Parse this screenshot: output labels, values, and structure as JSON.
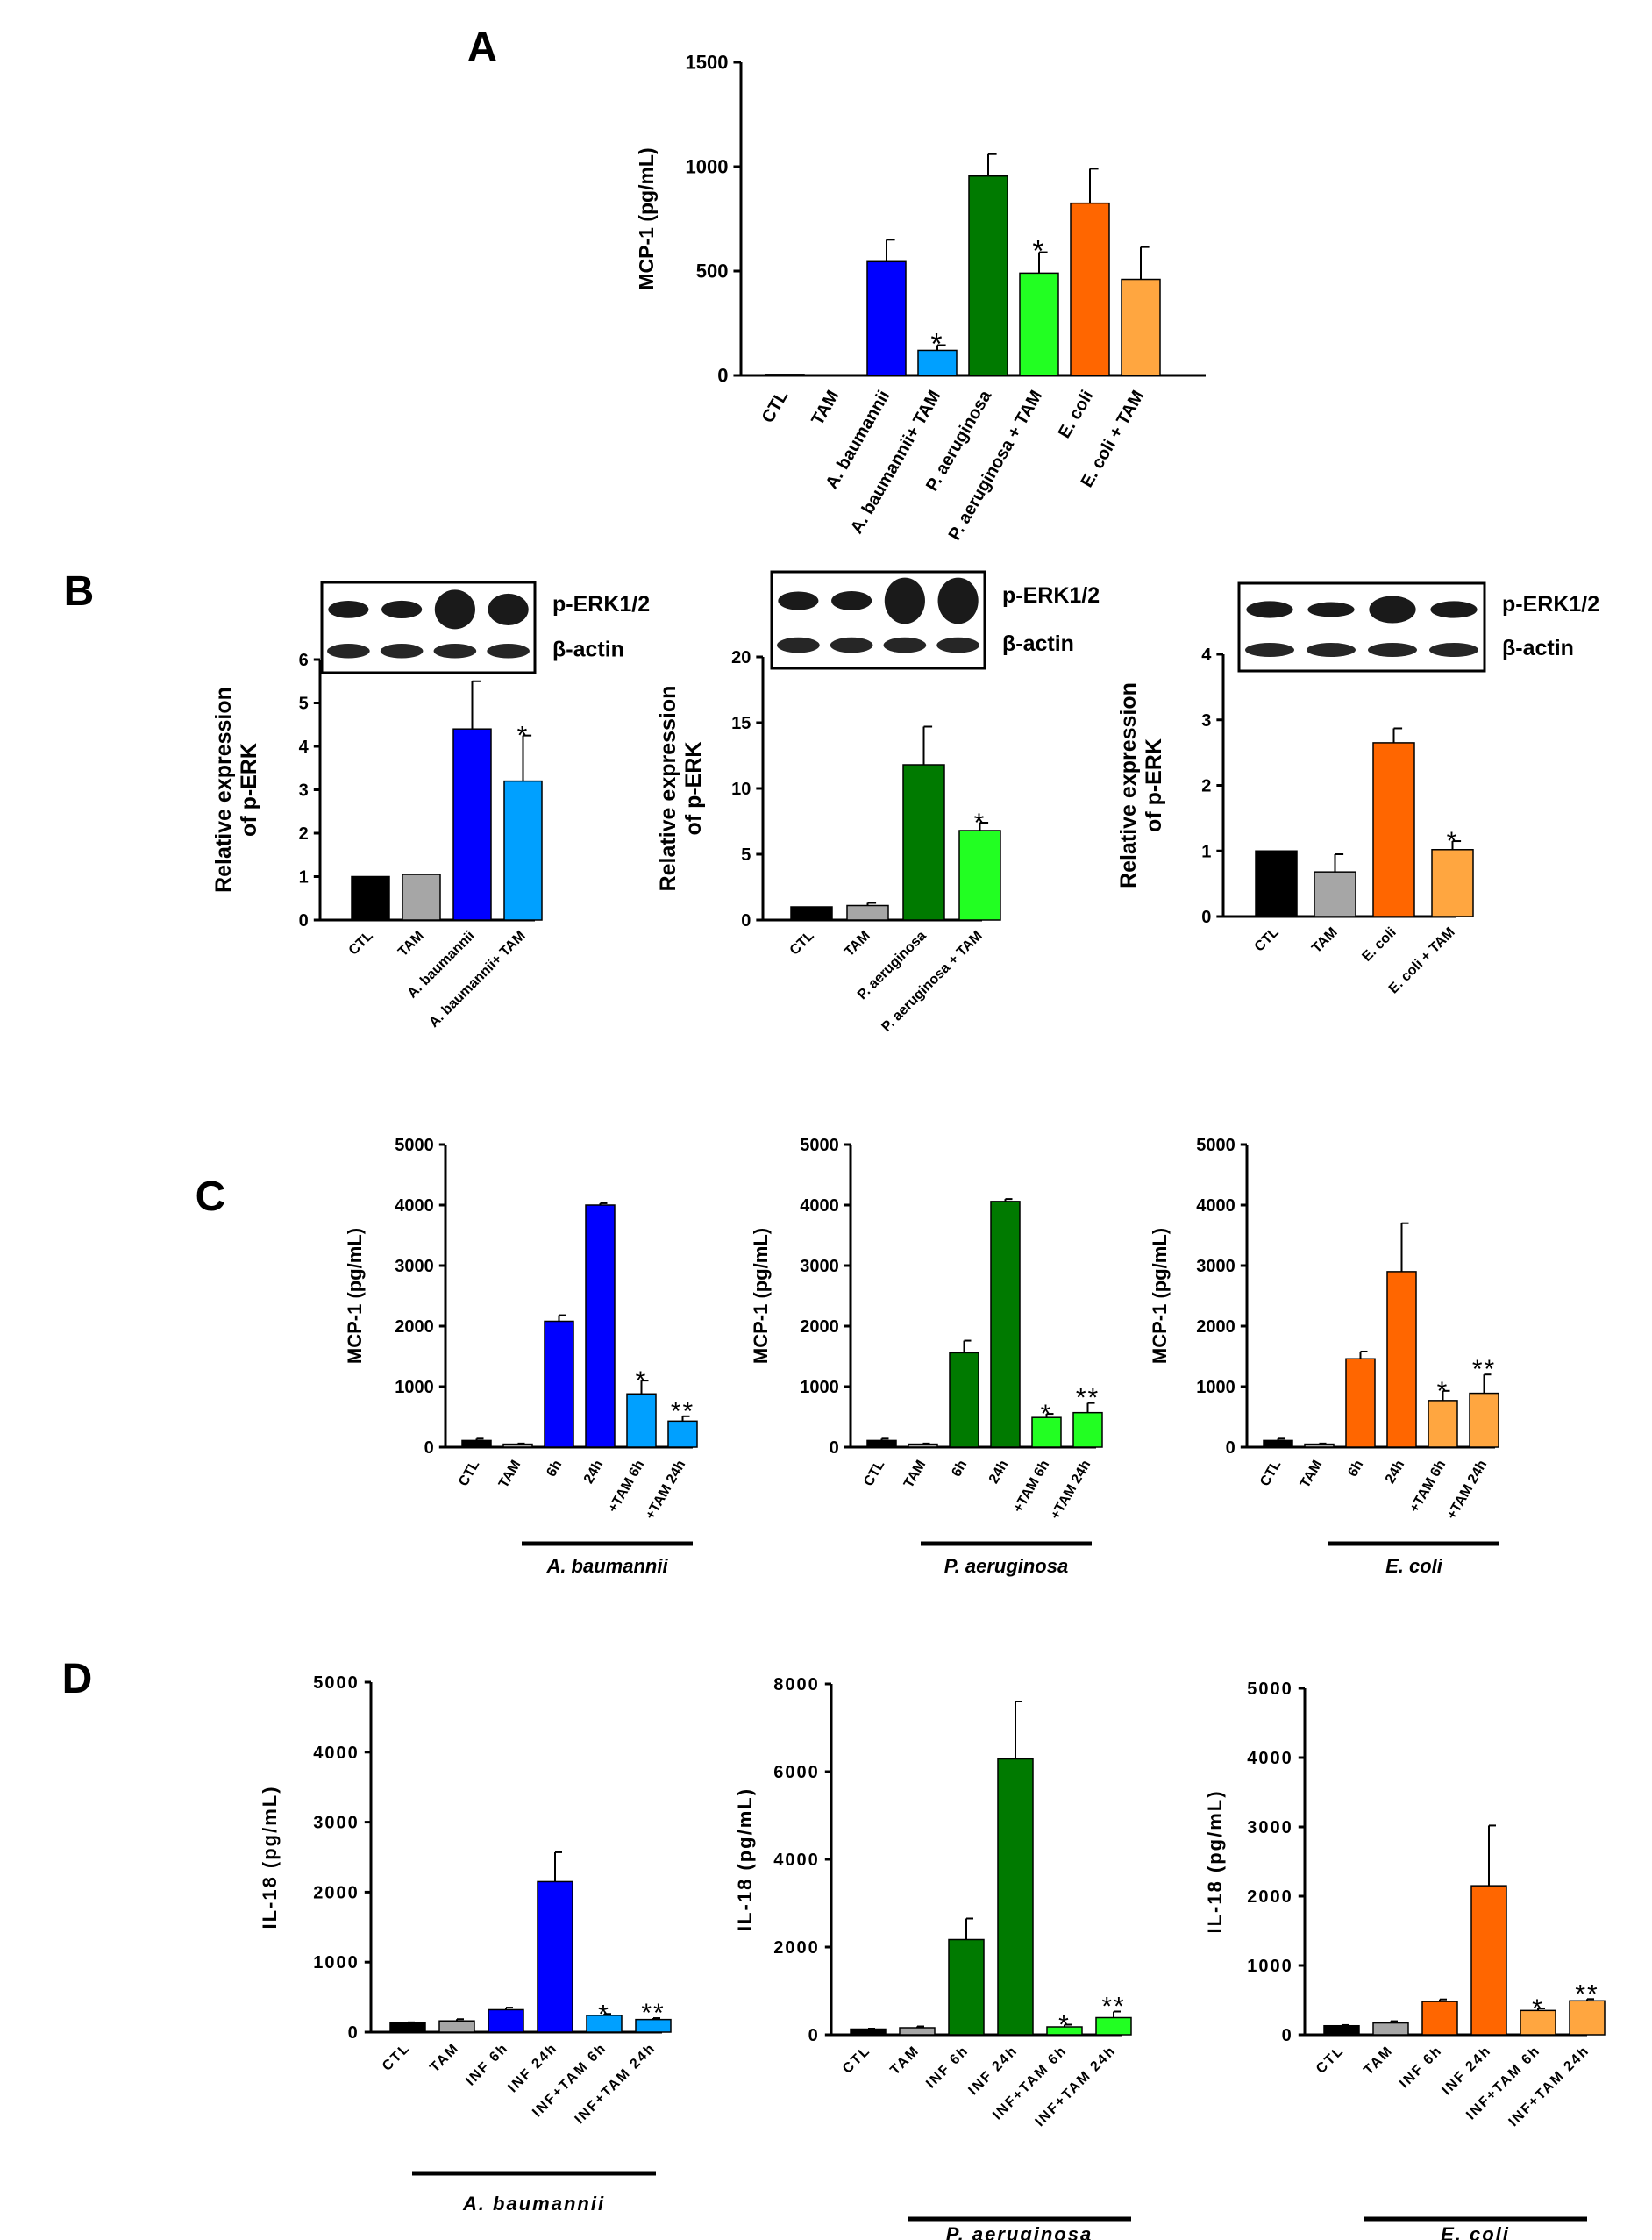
{
  "panel_letters": [
    "A",
    "B",
    "C",
    "D"
  ],
  "colors": {
    "ctl": "#000000",
    "tam": "#a6a6a6",
    "ab": "#0000ff",
    "ab_tam": "#00a0ff",
    "pa": "#007a00",
    "pa_tam": "#22ff22",
    "ec": "#ff6600",
    "ec_tam": "#ffa640"
  },
  "western_blot": {
    "target_label": "p-ERK1/2",
    "loading_label": "β-actin"
  },
  "chart_data": [
    {
      "id": "A",
      "type": "bar",
      "title": "",
      "xlabel": "",
      "ylabel": "MCP-1 (pg/mL)",
      "ylim": [
        0,
        1500
      ],
      "yticks": [
        0,
        500,
        1000,
        1500
      ],
      "categories": [
        "CTL",
        "TAM",
        "A. baumannii",
        "A. baumannii+ TAM",
        "P. aeruginosa",
        "P. aeruginosa + TAM",
        "E. coli",
        "E. coli + TAM"
      ],
      "values": [
        5,
        0,
        545,
        120,
        955,
        490,
        825,
        460
      ],
      "errors": [
        0,
        0,
        105,
        25,
        105,
        100,
        165,
        155
      ],
      "annotations": [
        "",
        "",
        "",
        "*",
        "",
        "*",
        "",
        ""
      ],
      "bar_colors": [
        "#000000",
        "#a6a6a6",
        "#0000ff",
        "#00a0ff",
        "#007a00",
        "#22ff22",
        "#ff6600",
        "#ffa640"
      ]
    },
    {
      "id": "B1",
      "type": "bar",
      "title": "",
      "ylabel": "Relative expression of p-ERK",
      "ylabel_lines": [
        "Relative expression",
        "of p-ERK"
      ],
      "ylim": [
        0,
        6
      ],
      "yticks": [
        0,
        1,
        2,
        3,
        4,
        5,
        6
      ],
      "categories": [
        "CTL",
        "TAM",
        "A. baumannii",
        "A. baumannii+ TAM"
      ],
      "values": [
        1,
        1.05,
        4.4,
        3.2
      ],
      "errors": [
        0,
        0,
        1.1,
        1.05
      ],
      "annotations": [
        "",
        "",
        "",
        "*"
      ],
      "bar_colors": [
        "#000000",
        "#a6a6a6",
        "#0000ff",
        "#00a0ff"
      ]
    },
    {
      "id": "B2",
      "type": "bar",
      "title": "",
      "ylabel": "Relative expression of p-ERK",
      "ylabel_lines": [
        "Relative expression",
        "of p-ERK"
      ],
      "ylim": [
        0,
        20
      ],
      "yticks": [
        0,
        5,
        10,
        15,
        20
      ],
      "categories": [
        "CTL",
        "TAM",
        "P. aeruginosa",
        "P. aeruginosa + TAM"
      ],
      "values": [
        1,
        1.1,
        11.8,
        6.8
      ],
      "errors": [
        0,
        0.2,
        2.9,
        0.6
      ],
      "annotations": [
        "",
        "",
        "",
        "*"
      ],
      "bar_colors": [
        "#000000",
        "#a6a6a6",
        "#007a00",
        "#22ff22"
      ]
    },
    {
      "id": "B3",
      "type": "bar",
      "title": "",
      "ylabel": "Relative expression of p-ERK",
      "ylabel_lines": [
        "Relative expression",
        "of p-ERK"
      ],
      "ylim": [
        0,
        4
      ],
      "yticks": [
        0,
        1,
        2,
        3,
        4
      ],
      "categories": [
        "CTL",
        "TAM",
        "E. coli",
        "E. coli + TAM"
      ],
      "values": [
        1,
        0.68,
        2.65,
        1.02
      ],
      "errors": [
        0,
        0.27,
        0.22,
        0.13
      ],
      "annotations": [
        "",
        "",
        "",
        "*"
      ],
      "bar_colors": [
        "#000000",
        "#a6a6a6",
        "#ff6600",
        "#ffa640"
      ]
    },
    {
      "id": "C1",
      "type": "bar",
      "title": "",
      "group_label": "A. baumannii",
      "ylabel": "MCP-1 (pg/mL)",
      "ylim": [
        0,
        5000
      ],
      "yticks": [
        0,
        1000,
        2000,
        3000,
        4000,
        5000
      ],
      "categories": [
        "CTL",
        "TAM",
        "6h",
        "24h",
        "+TAM 6h",
        "+TAM 24h"
      ],
      "values": [
        110,
        50,
        2080,
        4000,
        880,
        430
      ],
      "errors": [
        30,
        10,
        100,
        30,
        220,
        80
      ],
      "annotations": [
        "",
        "",
        "",
        "",
        "*",
        "**"
      ],
      "bar_colors": [
        "#000000",
        "#a6a6a6",
        "#0000ff",
        "#0000ff",
        "#00a0ff",
        "#00a0ff"
      ]
    },
    {
      "id": "C2",
      "type": "bar",
      "title": "",
      "group_label": "P. aeruginosa",
      "ylabel": "MCP-1 (pg/mL)",
      "ylim": [
        0,
        5000
      ],
      "yticks": [
        0,
        1000,
        2000,
        3000,
        4000,
        5000
      ],
      "categories": [
        "CTL",
        "TAM",
        "6h",
        "24h",
        "+TAM 6h",
        "+TAM 24h"
      ],
      "values": [
        110,
        50,
        1560,
        4060,
        490,
        570
      ],
      "errors": [
        30,
        10,
        200,
        40,
        60,
        160
      ],
      "annotations": [
        "",
        "",
        "",
        "",
        "*",
        "**"
      ],
      "bar_colors": [
        "#000000",
        "#a6a6a6",
        "#007a00",
        "#007a00",
        "#22ff22",
        "#22ff22"
      ]
    },
    {
      "id": "C3",
      "type": "bar",
      "title": "",
      "group_label": "E. coli",
      "ylabel": "MCP-1 (pg/mL)",
      "ylim": [
        0,
        5000
      ],
      "yticks": [
        0,
        1000,
        2000,
        3000,
        4000,
        5000
      ],
      "categories": [
        "CTL",
        "TAM",
        "6h",
        "24h",
        "+TAM 6h",
        "+TAM 24h"
      ],
      "values": [
        110,
        50,
        1460,
        2900,
        770,
        890
      ],
      "errors": [
        30,
        10,
        120,
        800,
        160,
        310
      ],
      "annotations": [
        "",
        "",
        "",
        "",
        "*",
        "**"
      ],
      "bar_colors": [
        "#000000",
        "#a6a6a6",
        "#ff6600",
        "#ff6600",
        "#ffa640",
        "#ffa640"
      ]
    },
    {
      "id": "D1",
      "type": "bar",
      "title": "",
      "group_label": "A. baumannii",
      "ylabel": "IL-18 (pg/mL)",
      "ylim": [
        0,
        5000
      ],
      "yticks": [
        0,
        1000,
        2000,
        3000,
        4000,
        5000
      ],
      "categories": [
        "CTL",
        "TAM",
        "INF 6h",
        "INF 24h",
        "INF+TAM 6h",
        "INF+TAM 24h"
      ],
      "values": [
        130,
        160,
        320,
        2150,
        240,
        180
      ],
      "errors": [
        10,
        25,
        30,
        420,
        20,
        20
      ],
      "annotations": [
        "",
        "",
        "",
        "",
        "*",
        "**"
      ],
      "bar_colors": [
        "#000000",
        "#a6a6a6",
        "#0000ff",
        "#0000ff",
        "#00a0ff",
        "#00a0ff"
      ]
    },
    {
      "id": "D2",
      "type": "bar",
      "title": "",
      "group_label": "P. aeruginosa",
      "ylabel": "IL-18 (pg/mL)",
      "ylim": [
        0,
        8000
      ],
      "yticks": [
        0,
        2000,
        4000,
        6000,
        8000
      ],
      "categories": [
        "CTL",
        "TAM",
        "INF 6h",
        "INF 24h",
        "INF+TAM 6h",
        "INF+TAM 24h"
      ],
      "values": [
        130,
        160,
        2170,
        6290,
        180,
        390
      ],
      "errors": [
        10,
        30,
        480,
        1310,
        50,
        140
      ],
      "annotations": [
        "",
        "",
        "",
        "",
        "*",
        "**"
      ],
      "bar_colors": [
        "#000000",
        "#a6a6a6",
        "#007a00",
        "#007a00",
        "#22ff22",
        "#22ff22"
      ]
    },
    {
      "id": "D3",
      "type": "bar",
      "title": "",
      "group_label": "E. coli",
      "ylabel": "IL-18 (pg/mL)",
      "ylim": [
        0,
        5000
      ],
      "yticks": [
        0,
        1000,
        2000,
        3000,
        4000,
        5000
      ],
      "categories": [
        "CTL",
        "TAM",
        "INF 6h",
        "INF 24h",
        "INF+TAM 6h",
        "INF+TAM 24h"
      ],
      "values": [
        130,
        170,
        480,
        2150,
        350,
        490
      ],
      "errors": [
        10,
        25,
        30,
        870,
        30,
        25
      ],
      "annotations": [
        "",
        "",
        "",
        "",
        "*",
        "**"
      ],
      "bar_colors": [
        "#000000",
        "#a6a6a6",
        "#ff6600",
        "#ff6600",
        "#ffa640",
        "#ffa640"
      ]
    }
  ]
}
